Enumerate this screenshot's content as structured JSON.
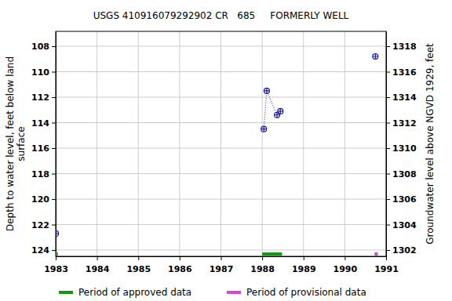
{
  "chart_data": {
    "type": "line",
    "title": "USGS 410916079292902 CR   685     FORMERLY WELL",
    "y_label": [
      "Depth to water level, feet below land",
      "surface"
    ],
    "y2_label": "Groundwater level above NGVD 1929, feet",
    "x": [
      1983.0,
      null,
      1988.04,
      1988.11,
      1988.36,
      1988.44,
      null,
      1990.74
    ],
    "series": [
      {
        "name": "Depth to water level",
        "color": "#1a1a9c",
        "marker": "circle-cross",
        "line_style": "dotted",
        "values": [
          122.7,
          null,
          114.5,
          111.5,
          113.4,
          113.1,
          null,
          108.8
        ]
      }
    ],
    "periods": [
      {
        "name": "Period of approved data",
        "color": "#119911",
        "ranges": [
          [
            1982.97,
            1983.05
          ],
          [
            1988.0,
            1988.48
          ]
        ]
      },
      {
        "name": "Period of provisional data",
        "color": "#dd44cc",
        "ranges": [
          [
            1990.72,
            1990.8
          ]
        ]
      }
    ],
    "xlim": [
      1983,
      1991
    ],
    "xticks": [
      1983,
      1984,
      1985,
      1986,
      1987,
      1988,
      1989,
      1990,
      1991
    ],
    "ylim": [
      106.83,
      124.49
    ],
    "yticks": [
      108,
      110,
      112,
      114,
      116,
      118,
      120,
      122,
      124
    ],
    "y2lim": [
      1319.17,
      1301.51
    ],
    "y2ticks": [
      1302,
      1304,
      1306,
      1308,
      1310,
      1312,
      1314,
      1316,
      1318
    ],
    "grid": true,
    "legend": "bottom"
  }
}
